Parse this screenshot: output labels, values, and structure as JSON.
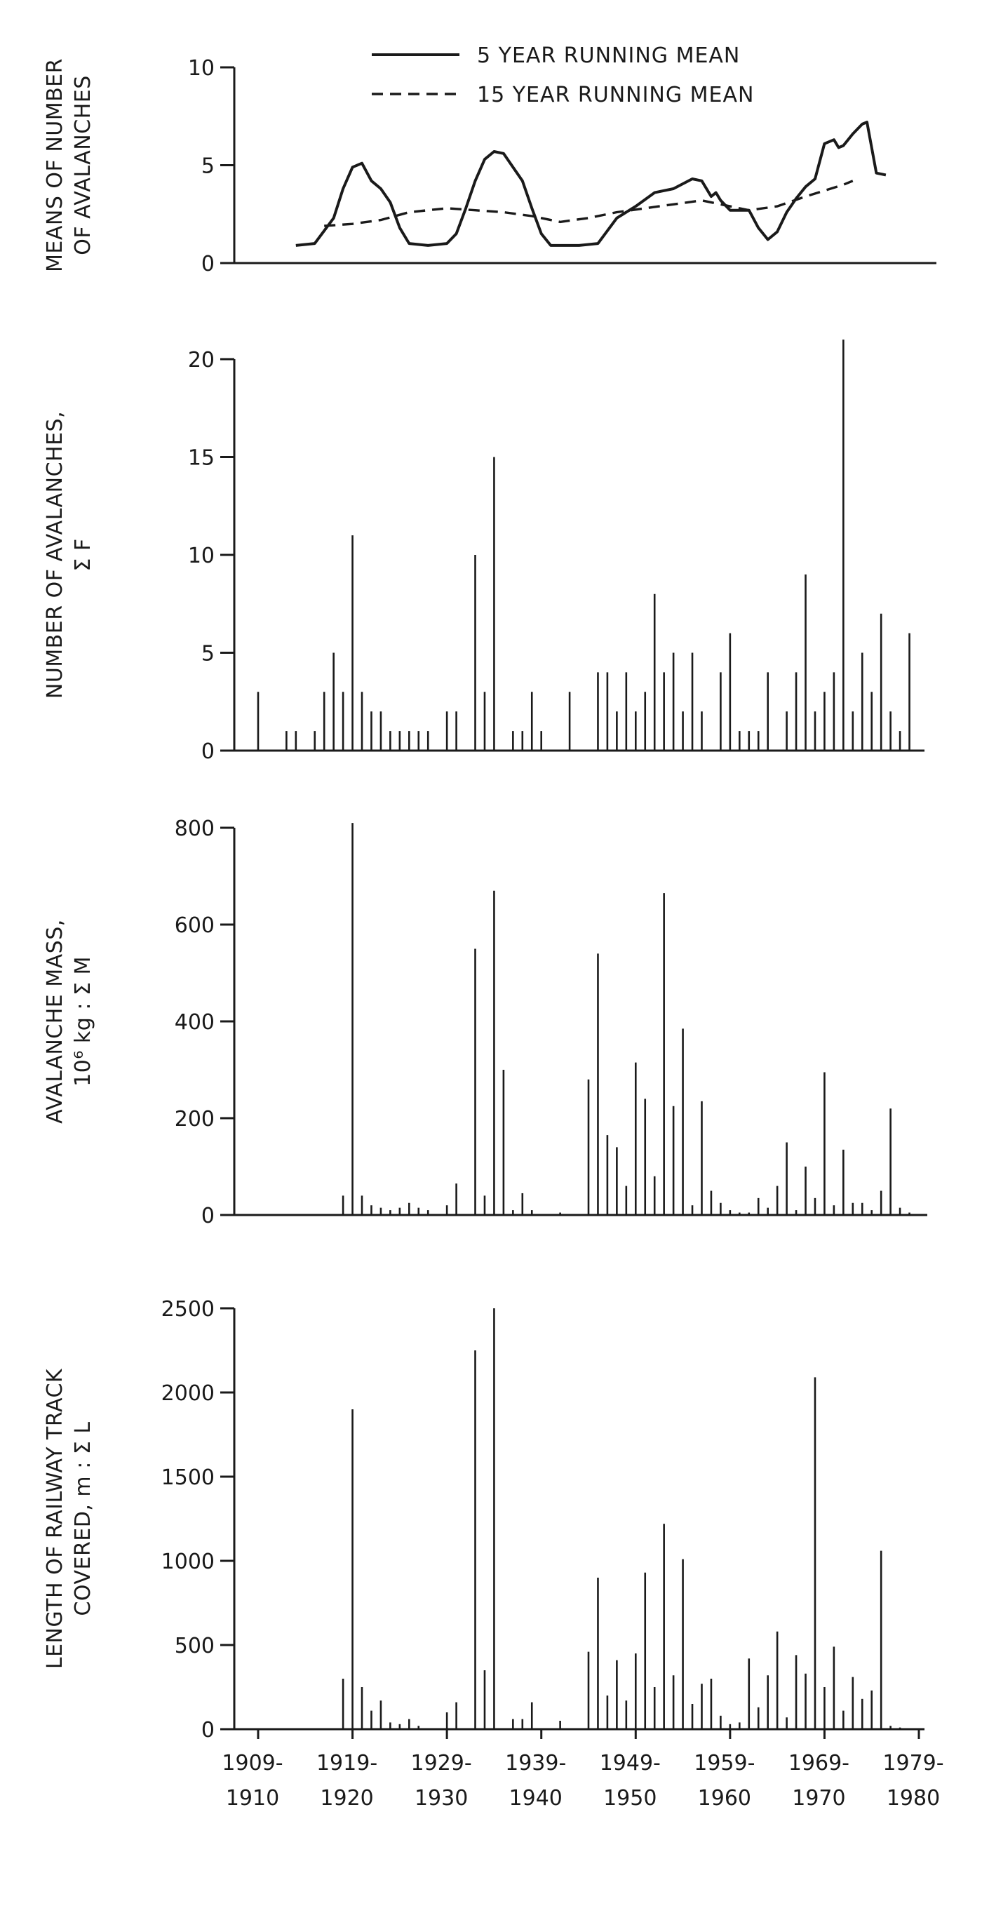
{
  "x_tick_labels": [
    [
      "1909-",
      "1910"
    ],
    [
      "1919-",
      "1920"
    ],
    [
      "1929-",
      "1930"
    ],
    [
      "1939-",
      "1940"
    ],
    [
      "1949-",
      "1950"
    ],
    [
      "1959-",
      "1960"
    ],
    [
      "1969-",
      "1970"
    ],
    [
      "1979-",
      "1980"
    ]
  ],
  "chart_data": [
    {
      "type": "line",
      "ylabel": [
        "MEANS OF NUMBER",
        "OF AVALANCHES"
      ],
      "ylim": [
        0,
        10
      ],
      "yticks": [
        0,
        5,
        10
      ],
      "legend": {
        "position": "top-center"
      },
      "series": [
        {
          "name": "5 YEAR RUNNING MEAN",
          "style": "solid",
          "points": [
            [
              1913,
              0.9
            ],
            [
              1915,
              1.0
            ],
            [
              1917,
              2.3
            ],
            [
              1918,
              3.8
            ],
            [
              1919,
              4.9
            ],
            [
              1920,
              5.1
            ],
            [
              1921,
              4.2
            ],
            [
              1922,
              3.8
            ],
            [
              1923,
              3.1
            ],
            [
              1924,
              1.8
            ],
            [
              1925,
              1.0
            ],
            [
              1927,
              0.9
            ],
            [
              1929,
              1.0
            ],
            [
              1930,
              1.5
            ],
            [
              1931,
              2.8
            ],
            [
              1932,
              4.2
            ],
            [
              1933,
              5.3
            ],
            [
              1934,
              5.7
            ],
            [
              1935,
              5.6
            ],
            [
              1936,
              4.9
            ],
            [
              1937,
              4.2
            ],
            [
              1938,
              2.8
            ],
            [
              1939,
              1.5
            ],
            [
              1940,
              0.9
            ],
            [
              1943,
              0.9
            ],
            [
              1945,
              1.0
            ],
            [
              1947,
              2.3
            ],
            [
              1949,
              2.9
            ],
            [
              1951,
              3.6
            ],
            [
              1953,
              3.8
            ],
            [
              1955,
              4.3
            ],
            [
              1956,
              4.2
            ],
            [
              1957,
              3.4
            ],
            [
              1957.5,
              3.6
            ],
            [
              1958,
              3.2
            ],
            [
              1959,
              2.7
            ],
            [
              1961,
              2.7
            ],
            [
              1962,
              1.8
            ],
            [
              1963,
              1.2
            ],
            [
              1964,
              1.6
            ],
            [
              1965,
              2.6
            ],
            [
              1966,
              3.3
            ],
            [
              1967,
              3.9
            ],
            [
              1968,
              4.3
            ],
            [
              1969,
              6.1
            ],
            [
              1970,
              6.3
            ],
            [
              1970.5,
              5.9
            ],
            [
              1971,
              6.0
            ],
            [
              1972,
              6.6
            ],
            [
              1973,
              7.1
            ],
            [
              1973.5,
              7.2
            ],
            [
              1974,
              5.9
            ],
            [
              1974.5,
              4.6
            ],
            [
              1975.5,
              4.5
            ]
          ]
        },
        {
          "name": "15 YEAR RUNNING MEAN",
          "style": "dashed",
          "points": [
            [
              1916,
              1.9
            ],
            [
              1919,
              2.0
            ],
            [
              1922,
              2.2
            ],
            [
              1925,
              2.6
            ],
            [
              1929,
              2.8
            ],
            [
              1932,
              2.7
            ],
            [
              1935,
              2.6
            ],
            [
              1938,
              2.4
            ],
            [
              1941,
              2.1
            ],
            [
              1944,
              2.3
            ],
            [
              1947,
              2.6
            ],
            [
              1950,
              2.8
            ],
            [
              1953,
              3.0
            ],
            [
              1956,
              3.2
            ],
            [
              1958,
              3.0
            ],
            [
              1961,
              2.7
            ],
            [
              1964,
              2.9
            ],
            [
              1967,
              3.4
            ],
            [
              1971,
              4.0
            ],
            [
              1972,
              4.2
            ]
          ]
        }
      ]
    },
    {
      "type": "bar",
      "ylabel": [
        "NUMBER OF AVALANCHES,",
        "Σ F"
      ],
      "ylim": [
        0,
        20
      ],
      "yticks": [
        0,
        5,
        10,
        15,
        20
      ],
      "x": [
        1909,
        1912,
        1913,
        1915,
        1916,
        1917,
        1918,
        1919,
        1920,
        1921,
        1922,
        1923,
        1924,
        1925,
        1926,
        1927,
        1929,
        1930,
        1932,
        1933,
        1934,
        1936,
        1937,
        1938,
        1939,
        1942,
        1945,
        1946,
        1947,
        1948,
        1949,
        1950,
        1951,
        1952,
        1953,
        1954,
        1955,
        1956,
        1958,
        1959,
        1960,
        1961,
        1962,
        1963,
        1965,
        1966,
        1967,
        1968,
        1969,
        1970,
        1971,
        1972,
        1973,
        1974,
        1975,
        1976,
        1977,
        1978
      ],
      "values": [
        3,
        1,
        1,
        1,
        3,
        5,
        3,
        11,
        3,
        2,
        2,
        1,
        1,
        1,
        1,
        1,
        2,
        2,
        10,
        3,
        15,
        1,
        1,
        3,
        1,
        3,
        4,
        4,
        2,
        4,
        2,
        3,
        8,
        4,
        5,
        2,
        5,
        2,
        4,
        6,
        1,
        1,
        1,
        4,
        2,
        4,
        9,
        2,
        3,
        4,
        21,
        2,
        5,
        3,
        7,
        2,
        1,
        6
      ]
    },
    {
      "type": "bar",
      "ylabel": [
        "AVALANCHE MASS,",
        "10⁶ kg : Σ M"
      ],
      "ylim": [
        0,
        800
      ],
      "yticks": [
        0,
        200,
        400,
        600,
        800
      ],
      "x": [
        1918,
        1919,
        1920,
        1921,
        1922,
        1923,
        1924,
        1925,
        1926,
        1927,
        1929,
        1930,
        1932,
        1933,
        1934,
        1935,
        1936,
        1937,
        1938,
        1941,
        1944,
        1945,
        1946,
        1947,
        1948,
        1949,
        1950,
        1951,
        1952,
        1953,
        1954,
        1955,
        1956,
        1957,
        1958,
        1959,
        1960,
        1961,
        1962,
        1963,
        1964,
        1965,
        1966,
        1967,
        1968,
        1969,
        1970,
        1971,
        1972,
        1973,
        1974,
        1975,
        1976,
        1977,
        1978
      ],
      "values": [
        40,
        810,
        40,
        20,
        15,
        10,
        15,
        25,
        15,
        10,
        20,
        65,
        550,
        40,
        670,
        300,
        10,
        45,
        10,
        5,
        280,
        540,
        165,
        140,
        60,
        315,
        240,
        80,
        665,
        225,
        385,
        20,
        235,
        50,
        25,
        10,
        5,
        5,
        35,
        15,
        60,
        150,
        10,
        100,
        35,
        295,
        20,
        135,
        25,
        25,
        10,
        50,
        220,
        15,
        5
      ]
    },
    {
      "type": "bar",
      "ylabel": [
        "LENGTH OF RAILWAY TRACK",
        "COVERED, m : Σ L"
      ],
      "ylim": [
        0,
        2500
      ],
      "yticks": [
        0,
        500,
        1000,
        1500,
        2000,
        2500
      ],
      "x": [
        1918,
        1919,
        1920,
        1921,
        1922,
        1923,
        1924,
        1925,
        1926,
        1929,
        1930,
        1932,
        1933,
        1934,
        1936,
        1937,
        1938,
        1941,
        1944,
        1945,
        1946,
        1947,
        1948,
        1949,
        1950,
        1951,
        1952,
        1953,
        1954,
        1955,
        1956,
        1957,
        1958,
        1959,
        1960,
        1961,
        1962,
        1963,
        1964,
        1965,
        1966,
        1967,
        1968,
        1969,
        1970,
        1971,
        1972,
        1973,
        1974,
        1975,
        1976,
        1977
      ],
      "values": [
        300,
        1900,
        250,
        110,
        170,
        40,
        30,
        60,
        20,
        100,
        160,
        2250,
        350,
        2500,
        60,
        60,
        160,
        50,
        460,
        900,
        200,
        410,
        170,
        450,
        930,
        250,
        1220,
        320,
        1010,
        150,
        270,
        300,
        80,
        30,
        40,
        420,
        130,
        320,
        580,
        70,
        440,
        330,
        2090,
        250,
        490,
        110,
        310,
        180,
        230,
        1060,
        20,
        10
      ]
    }
  ]
}
